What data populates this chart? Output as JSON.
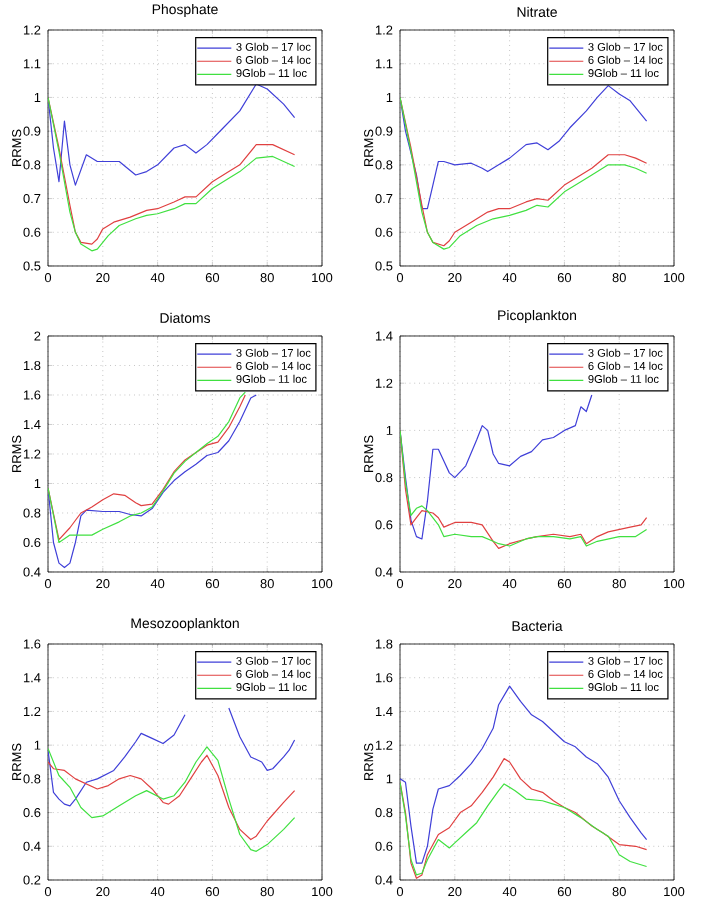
{
  "chart_data": [
    {
      "type": "line",
      "title": "Phosphate",
      "ylabel": "RRMS",
      "xlim": [
        0,
        100
      ],
      "xticks": [
        0,
        20,
        40,
        60,
        80,
        100
      ],
      "ylim": [
        0.5,
        1.2
      ],
      "yticks": [
        0.5,
        0.6,
        0.7,
        0.8,
        0.9,
        1,
        1.1,
        1.2
      ],
      "grid": true,
      "legend": "top right",
      "series": [
        {
          "name": "3 Glob – 17 loc",
          "color": "#3f3fd8",
          "x": [
            0,
            2,
            4,
            6,
            8,
            10,
            14,
            18,
            26,
            32,
            36,
            40,
            46,
            50,
            54,
            58,
            64,
            70,
            76,
            80,
            86,
            90
          ],
          "values": [
            1.0,
            0.85,
            0.75,
            0.93,
            0.8,
            0.74,
            0.83,
            0.81,
            0.81,
            0.77,
            0.78,
            0.8,
            0.85,
            0.86,
            0.835,
            0.86,
            0.91,
            0.96,
            1.04,
            1.025,
            0.98,
            0.94
          ]
        },
        {
          "name": "6 Glob – 14 loc",
          "color": "#e04040",
          "x": [
            0,
            4,
            8,
            10,
            12,
            16,
            18,
            20,
            24,
            30,
            36,
            40,
            46,
            50,
            54,
            60,
            66,
            70,
            76,
            82,
            86,
            90
          ],
          "values": [
            1.0,
            0.85,
            0.68,
            0.6,
            0.57,
            0.565,
            0.58,
            0.61,
            0.63,
            0.645,
            0.665,
            0.67,
            0.69,
            0.705,
            0.705,
            0.75,
            0.78,
            0.8,
            0.86,
            0.86,
            0.845,
            0.83
          ]
        },
        {
          "name": "9Glob – 11 loc",
          "color": "#40e040",
          "x": [
            0,
            4,
            8,
            10,
            12,
            16,
            18,
            22,
            26,
            32,
            36,
            40,
            46,
            50,
            54,
            60,
            66,
            70,
            76,
            82,
            86,
            90
          ],
          "values": [
            1.0,
            0.84,
            0.66,
            0.6,
            0.565,
            0.545,
            0.55,
            0.59,
            0.62,
            0.64,
            0.65,
            0.655,
            0.67,
            0.685,
            0.685,
            0.73,
            0.76,
            0.78,
            0.82,
            0.825,
            0.81,
            0.795
          ]
        }
      ]
    },
    {
      "type": "line",
      "title": "Nitrate",
      "ylabel": "RRMS",
      "xlim": [
        0,
        100
      ],
      "xticks": [
        0,
        20,
        40,
        60,
        80,
        100
      ],
      "ylim": [
        0.5,
        1.2
      ],
      "yticks": [
        0.5,
        0.6,
        0.7,
        0.8,
        0.9,
        1,
        1.1,
        1.2
      ],
      "grid": true,
      "legend": "top right",
      "series": [
        {
          "name": "3 Glob – 17 loc",
          "color": "#3f3fd8",
          "x": [
            0,
            2,
            6,
            8,
            10,
            12,
            14,
            16,
            20,
            26,
            30,
            32,
            36,
            40,
            46,
            50,
            54,
            58,
            62,
            68,
            72,
            76,
            80,
            84,
            90
          ],
          "values": [
            1.0,
            0.9,
            0.77,
            0.67,
            0.67,
            0.74,
            0.81,
            0.81,
            0.8,
            0.805,
            0.79,
            0.78,
            0.8,
            0.82,
            0.86,
            0.865,
            0.845,
            0.87,
            0.91,
            0.96,
            1.0,
            1.035,
            1.01,
            0.99,
            0.93
          ]
        },
        {
          "name": "6 Glob – 14 loc",
          "color": "#e04040",
          "x": [
            0,
            4,
            8,
            10,
            12,
            16,
            18,
            20,
            26,
            32,
            36,
            40,
            46,
            50,
            54,
            60,
            66,
            70,
            76,
            82,
            86,
            90
          ],
          "values": [
            1.0,
            0.85,
            0.68,
            0.6,
            0.57,
            0.56,
            0.575,
            0.6,
            0.63,
            0.66,
            0.67,
            0.67,
            0.69,
            0.7,
            0.695,
            0.74,
            0.77,
            0.79,
            0.83,
            0.83,
            0.82,
            0.805
          ]
        },
        {
          "name": "9Glob – 11 loc",
          "color": "#40e040",
          "x": [
            0,
            4,
            8,
            10,
            12,
            16,
            18,
            22,
            28,
            34,
            40,
            46,
            50,
            54,
            60,
            66,
            70,
            76,
            82,
            86,
            90
          ],
          "values": [
            1.0,
            0.84,
            0.66,
            0.6,
            0.57,
            0.55,
            0.555,
            0.59,
            0.62,
            0.64,
            0.65,
            0.665,
            0.68,
            0.675,
            0.72,
            0.75,
            0.77,
            0.8,
            0.8,
            0.79,
            0.775
          ]
        }
      ]
    },
    {
      "type": "line",
      "title": "Diatoms",
      "ylabel": "RRMS",
      "xlim": [
        0,
        100
      ],
      "xticks": [
        0,
        20,
        40,
        60,
        80,
        100
      ],
      "ylim": [
        0.4,
        2
      ],
      "yticks": [
        0.4,
        0.6,
        0.8,
        1,
        1.2,
        1.4,
        1.6,
        1.8,
        2
      ],
      "grid": true,
      "legend": "top right",
      "series": [
        {
          "name": "3 Glob – 17 loc",
          "color": "#3f3fd8",
          "x": [
            0,
            2,
            4,
            6,
            8,
            10,
            12,
            14,
            20,
            26,
            30,
            34,
            38,
            42,
            46,
            50,
            54,
            58,
            62,
            66,
            70,
            74,
            76
          ],
          "values": [
            0.97,
            0.6,
            0.46,
            0.43,
            0.46,
            0.6,
            0.78,
            0.82,
            0.81,
            0.81,
            0.79,
            0.78,
            0.83,
            0.94,
            1.02,
            1.08,
            1.13,
            1.19,
            1.21,
            1.29,
            1.42,
            1.58,
            1.6
          ]
        },
        {
          "name": "6 Glob – 14 loc",
          "color": "#e04040",
          "x": [
            0,
            4,
            8,
            12,
            16,
            20,
            24,
            28,
            32,
            34,
            38,
            42,
            46,
            50,
            54,
            58,
            62,
            66,
            70,
            72
          ],
          "values": [
            0.97,
            0.62,
            0.7,
            0.8,
            0.84,
            0.89,
            0.93,
            0.92,
            0.87,
            0.85,
            0.86,
            0.96,
            1.08,
            1.16,
            1.21,
            1.26,
            1.28,
            1.38,
            1.52,
            1.6
          ]
        },
        {
          "name": "9Glob – 11 loc",
          "color": "#40e040",
          "x": [
            0,
            4,
            8,
            12,
            16,
            20,
            26,
            30,
            34,
            38,
            42,
            46,
            50,
            54,
            58,
            62,
            66,
            70,
            72
          ],
          "values": [
            0.97,
            0.6,
            0.65,
            0.65,
            0.65,
            0.69,
            0.74,
            0.78,
            0.8,
            0.84,
            0.95,
            1.07,
            1.15,
            1.21,
            1.27,
            1.32,
            1.42,
            1.58,
            1.62
          ]
        }
      ]
    },
    {
      "type": "line",
      "title": "Picoplankton",
      "ylabel": "RRMS",
      "xlim": [
        0,
        100
      ],
      "xticks": [
        0,
        20,
        40,
        60,
        80,
        100
      ],
      "ylim": [
        0.4,
        1.4
      ],
      "yticks": [
        0.4,
        0.6,
        0.8,
        1,
        1.2,
        1.4
      ],
      "grid": true,
      "legend": "top right",
      "series": [
        {
          "name": "3 Glob – 17 loc",
          "color": "#3f3fd8",
          "x": [
            0,
            2,
            4,
            6,
            8,
            10,
            12,
            14,
            16,
            18,
            20,
            24,
            28,
            30,
            32,
            34,
            36,
            40,
            44,
            48,
            52,
            56,
            60,
            64,
            66,
            68,
            70
          ],
          "values": [
            1.0,
            0.8,
            0.62,
            0.55,
            0.54,
            0.7,
            0.92,
            0.92,
            0.87,
            0.82,
            0.8,
            0.85,
            0.96,
            1.02,
            1.0,
            0.9,
            0.86,
            0.85,
            0.89,
            0.91,
            0.96,
            0.97,
            1.0,
            1.02,
            1.1,
            1.08,
            1.15
          ]
        },
        {
          "name": "6 Glob – 14 loc",
          "color": "#e04040",
          "x": [
            0,
            2,
            4,
            6,
            8,
            12,
            14,
            16,
            20,
            26,
            30,
            34,
            36,
            40,
            46,
            50,
            56,
            62,
            66,
            68,
            72,
            76,
            84,
            88,
            90
          ],
          "values": [
            1.0,
            0.75,
            0.6,
            0.63,
            0.66,
            0.65,
            0.63,
            0.59,
            0.61,
            0.61,
            0.6,
            0.53,
            0.5,
            0.52,
            0.54,
            0.55,
            0.56,
            0.55,
            0.56,
            0.52,
            0.55,
            0.57,
            0.59,
            0.6,
            0.63
          ]
        },
        {
          "name": "9Glob – 11 loc",
          "color": "#40e040",
          "x": [
            0,
            2,
            4,
            6,
            8,
            10,
            14,
            16,
            20,
            26,
            30,
            34,
            36,
            40,
            46,
            50,
            56,
            62,
            66,
            68,
            72,
            80,
            86,
            90
          ],
          "values": [
            1.0,
            0.78,
            0.64,
            0.67,
            0.68,
            0.66,
            0.6,
            0.55,
            0.56,
            0.55,
            0.55,
            0.53,
            0.52,
            0.51,
            0.54,
            0.55,
            0.55,
            0.54,
            0.55,
            0.51,
            0.53,
            0.55,
            0.55,
            0.58
          ]
        }
      ]
    },
    {
      "type": "line",
      "title": "Mesozooplankton",
      "ylabel": "RRMS",
      "xlim": [
        0,
        100
      ],
      "xticks": [
        0,
        20,
        40,
        60,
        80,
        100
      ],
      "ylim": [
        0.2,
        1.6
      ],
      "yticks": [
        0.2,
        0.4,
        0.6,
        0.8,
        1,
        1.2,
        1.4,
        1.6
      ],
      "grid": true,
      "legend": "top right",
      "series": [
        {
          "name": "3 Glob – 17 loc",
          "color": "#3f3fd8",
          "x": [
            0,
            2,
            4,
            6,
            8,
            10,
            14,
            18,
            24,
            28,
            32,
            34,
            38,
            42,
            46,
            50,
            54,
            58,
            62,
            66,
            70,
            74,
            78,
            80,
            82,
            86,
            88,
            90
          ],
          "values": [
            0.97,
            0.72,
            0.68,
            0.65,
            0.64,
            0.68,
            0.78,
            0.8,
            0.85,
            0.93,
            1.02,
            1.07,
            1.04,
            1.01,
            1.06,
            1.18,
            null,
            null,
            null,
            1.22,
            1.05,
            0.93,
            0.9,
            0.85,
            0.86,
            0.93,
            0.97,
            1.03
          ]
        },
        {
          "name": "6 Glob – 14 loc",
          "color": "#e04040",
          "x": [
            0,
            2,
            6,
            10,
            14,
            18,
            22,
            26,
            30,
            34,
            38,
            42,
            44,
            48,
            52,
            56,
            58,
            62,
            66,
            70,
            74,
            76,
            80,
            86,
            90
          ],
          "values": [
            0.9,
            0.86,
            0.85,
            0.8,
            0.77,
            0.74,
            0.76,
            0.8,
            0.82,
            0.8,
            0.74,
            0.66,
            0.65,
            0.7,
            0.8,
            0.9,
            0.94,
            0.82,
            0.63,
            0.5,
            0.44,
            0.46,
            0.55,
            0.66,
            0.73
          ]
        },
        {
          "name": "9Glob – 11 loc",
          "color": "#40e040",
          "x": [
            0,
            4,
            8,
            12,
            16,
            20,
            26,
            32,
            36,
            42,
            46,
            50,
            54,
            58,
            62,
            66,
            70,
            74,
            76,
            80,
            86,
            90
          ],
          "values": [
            0.98,
            0.82,
            0.75,
            0.63,
            0.57,
            0.58,
            0.64,
            0.7,
            0.73,
            0.68,
            0.7,
            0.78,
            0.9,
            0.99,
            0.91,
            0.68,
            0.47,
            0.38,
            0.37,
            0.41,
            0.5,
            0.57
          ]
        }
      ]
    },
    {
      "type": "line",
      "title": "Bacteria",
      "ylabel": "RRMS",
      "xlim": [
        0,
        100
      ],
      "xticks": [
        0,
        20,
        40,
        60,
        80,
        100
      ],
      "ylim": [
        0.4,
        1.8
      ],
      "yticks": [
        0.4,
        0.6,
        0.8,
        1,
        1.2,
        1.4,
        1.6,
        1.8
      ],
      "grid": true,
      "legend": "top right",
      "series": [
        {
          "name": "3 Glob – 17 loc",
          "color": "#3f3fd8",
          "x": [
            0,
            2,
            4,
            6,
            8,
            10,
            12,
            14,
            18,
            22,
            26,
            30,
            34,
            36,
            40,
            44,
            48,
            52,
            56,
            60,
            64,
            68,
            72,
            76,
            80,
            84,
            88,
            90
          ],
          "values": [
            1.0,
            0.98,
            0.72,
            0.5,
            0.5,
            0.6,
            0.82,
            0.94,
            0.96,
            1.02,
            1.09,
            1.18,
            1.3,
            1.44,
            1.55,
            1.46,
            1.38,
            1.34,
            1.28,
            1.22,
            1.19,
            1.13,
            1.09,
            1.01,
            0.87,
            0.77,
            0.68,
            0.64
          ]
        },
        {
          "name": "6 Glob – 14 loc",
          "color": "#e04040",
          "x": [
            0,
            2,
            4,
            6,
            8,
            10,
            14,
            18,
            22,
            26,
            30,
            34,
            38,
            40,
            44,
            48,
            52,
            56,
            60,
            64,
            70,
            74,
            80,
            86,
            90
          ],
          "values": [
            0.98,
            0.8,
            0.5,
            0.41,
            0.43,
            0.55,
            0.67,
            0.71,
            0.8,
            0.84,
            0.92,
            1.01,
            1.12,
            1.1,
            1.0,
            0.94,
            0.92,
            0.87,
            0.83,
            0.8,
            0.72,
            0.68,
            0.61,
            0.6,
            0.58
          ]
        },
        {
          "name": "9Glob – 11 loc",
          "color": "#40e040",
          "x": [
            0,
            2,
            4,
            6,
            8,
            10,
            14,
            18,
            20,
            24,
            28,
            32,
            36,
            38,
            42,
            46,
            52,
            56,
            60,
            66,
            72,
            76,
            80,
            84,
            90
          ],
          "values": [
            0.98,
            0.78,
            0.52,
            0.43,
            0.44,
            0.52,
            0.64,
            0.59,
            0.62,
            0.68,
            0.74,
            0.84,
            0.93,
            0.97,
            0.93,
            0.88,
            0.87,
            0.85,
            0.83,
            0.77,
            0.7,
            0.66,
            0.55,
            0.51,
            0.48
          ]
        }
      ]
    }
  ]
}
